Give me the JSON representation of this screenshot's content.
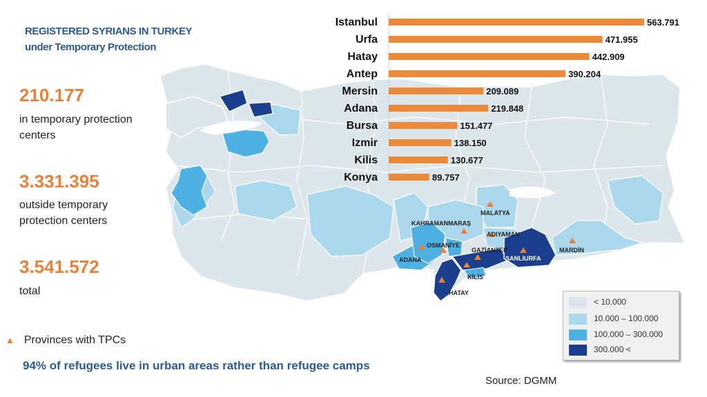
{
  "title": {
    "line1": "REGISTERED SYRIANS IN TURKEY",
    "line2": "under Temporary Protection"
  },
  "stats": [
    {
      "value": "210.177",
      "label": "in temporary protection  centers"
    },
    {
      "value": "3.331.395",
      "label": "outside  temporary protection centers"
    },
    {
      "value": "3.541.572",
      "label": "total"
    }
  ],
  "tpc_legend": {
    "icon": "triangle-icon",
    "label": "Provinces with TPCs"
  },
  "footnote": "94%  of refugees live in urban areas rather than refugee camps",
  "source": "Source: DGMM",
  "map": {
    "province_labels": [
      "MALATYA",
      "KAHRAMANMARAŞ",
      "ADIYAMAN",
      "OSMANİYE",
      "GAZİANTEP",
      "ŞANLIURFA",
      "MARDİN",
      "ADANA",
      "KİLİS",
      "HATAY"
    ],
    "tpc_marker_color": "#e8813a"
  },
  "map_legend": [
    {
      "label": "< 10.000",
      "color": "#dde6ea"
    },
    {
      "label": "10.000 – 100.000",
      "color": "#abd8ec"
    },
    {
      "label": "100.000 – 300.000",
      "color": "#4fb1e3"
    },
    {
      "label": "300.000 <",
      "color": "#1b3f8c"
    }
  ],
  "chart_data": {
    "type": "bar",
    "orientation": "horizontal",
    "categories": [
      "Istanbul",
      "Urfa",
      "Hatay",
      "Antep",
      "Mersin",
      "Adana",
      "Bursa",
      "Izmir",
      "Kilis",
      "Konya"
    ],
    "values": [
      563791,
      471955,
      442909,
      390204,
      209089,
      219848,
      151477,
      138150,
      130677,
      89757
    ],
    "value_labels": [
      "563.791",
      "471.955",
      "442.909",
      "390.204",
      "209.089",
      "219.848",
      "151.477",
      "138.150",
      "130.677",
      "89.757"
    ],
    "bar_color": "#ec8a3c",
    "title": "",
    "xlabel": "",
    "ylabel": ""
  }
}
